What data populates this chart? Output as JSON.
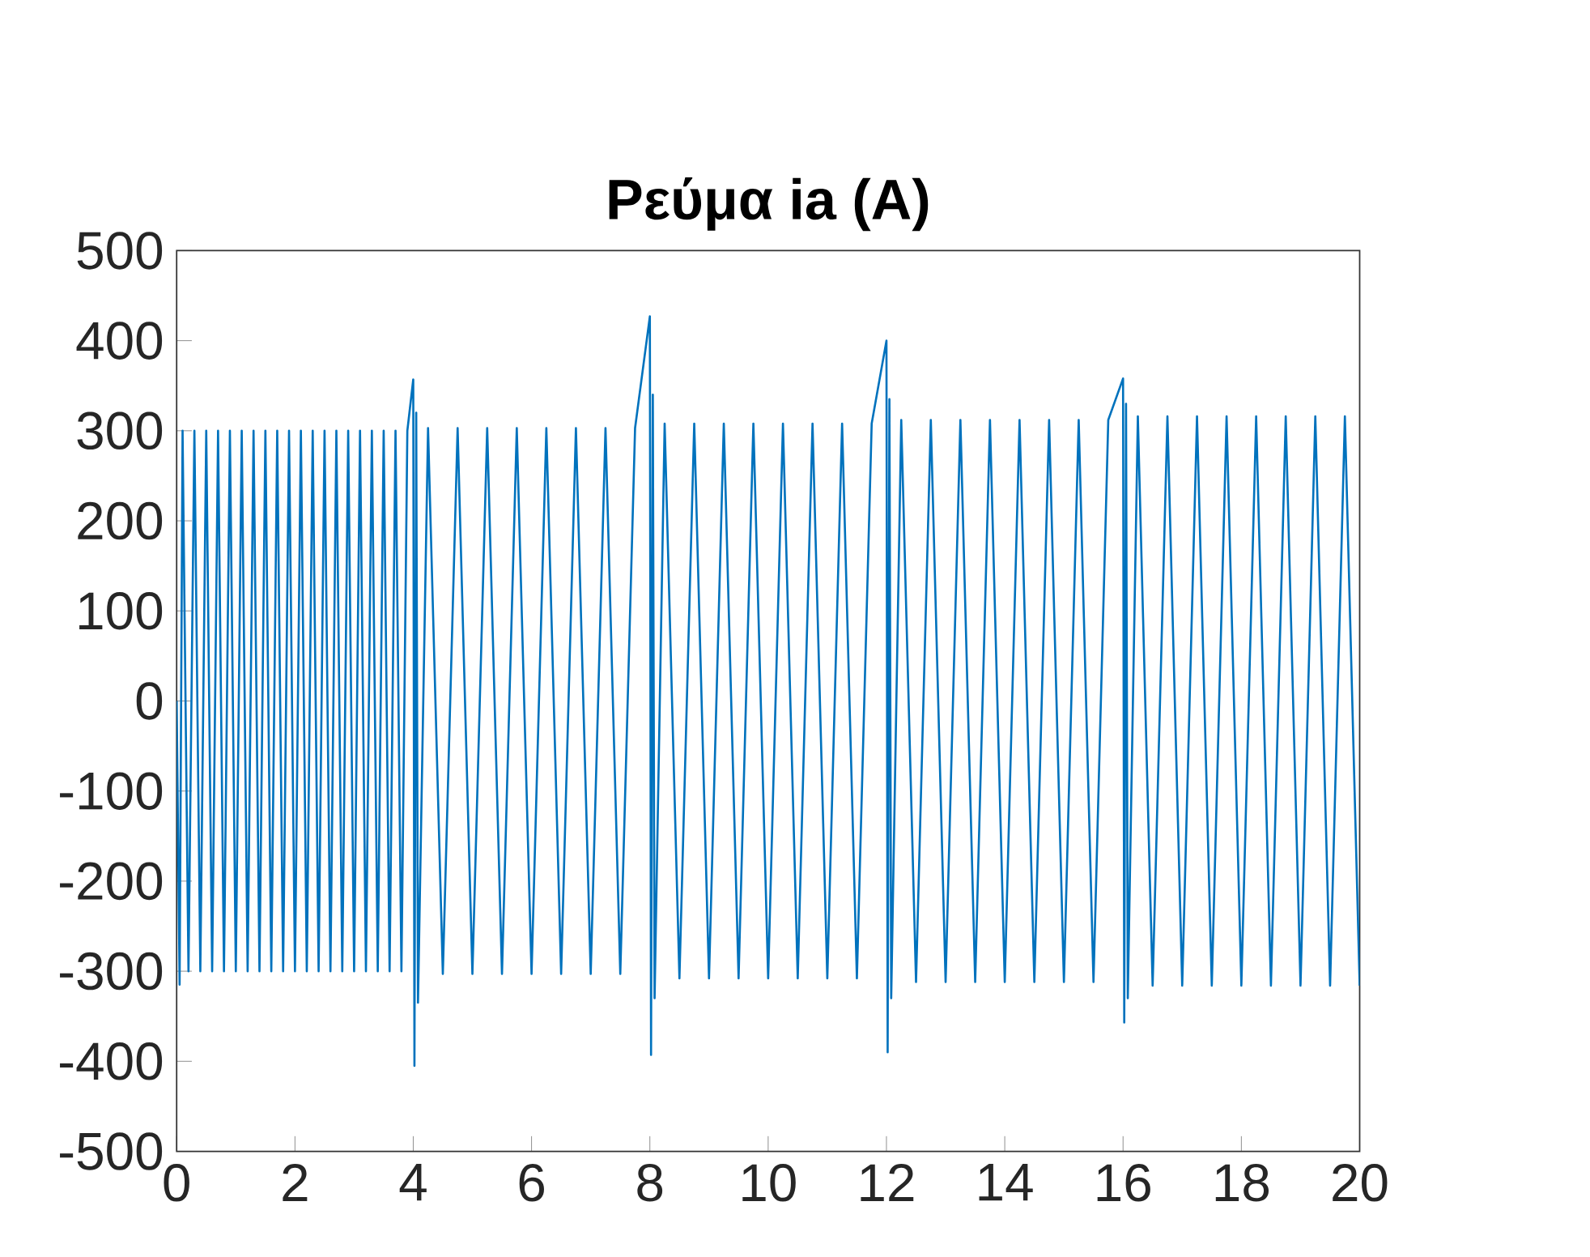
{
  "chart_data": {
    "type": "line",
    "title": "Ρεύμα ia (A)",
    "xlim": [
      0,
      20
    ],
    "xticks": [
      0,
      2,
      4,
      6,
      8,
      10,
      12,
      14,
      16,
      18,
      20
    ],
    "ylim": [
      -500,
      500
    ],
    "yticks": [
      -500,
      -400,
      -300,
      -200,
      -100,
      0,
      100,
      200,
      300,
      400,
      500
    ],
    "grid": false,
    "marker": "none",
    "line_style": "solid",
    "series": [
      {
        "color": "#0072bd",
        "x": [
          0,
          0.05,
          0.1,
          0.2,
          0.3,
          0.4,
          0.5,
          0.6,
          0.7,
          0.8,
          0.9,
          1.0,
          1.1,
          1.2,
          1.3,
          1.4,
          1.5,
          1.6,
          1.7,
          1.8,
          1.9,
          2.0,
          2.1,
          2.2,
          2.3,
          2.4,
          2.5,
          2.6,
          2.7,
          2.8,
          2.9,
          3.0,
          3.1,
          3.2,
          3.3,
          3.4,
          3.5,
          3.6,
          3.7,
          3.8,
          3.9,
          4.0,
          4.02,
          4.05,
          4.08,
          4.25,
          4.5,
          4.75,
          5.0,
          5.25,
          5.5,
          5.75,
          6.0,
          6.25,
          6.5,
          6.75,
          7.0,
          7.25,
          7.5,
          7.75,
          8.0,
          8.02,
          8.05,
          8.08,
          8.25,
          8.5,
          8.75,
          9.0,
          9.25,
          9.5,
          9.75,
          10.0,
          10.25,
          10.5,
          10.75,
          11.0,
          11.25,
          11.5,
          11.75,
          12.0,
          12.02,
          12.05,
          12.08,
          12.25,
          12.5,
          12.75,
          13.0,
          13.25,
          13.5,
          13.75,
          14.0,
          14.25,
          14.5,
          14.75,
          15.0,
          15.25,
          15.5,
          15.75,
          16.0,
          16.02,
          16.05,
          16.08,
          16.25,
          16.5,
          16.75,
          17.0,
          17.25,
          17.5,
          17.75,
          18.0,
          18.25,
          18.5,
          18.75,
          19.0,
          19.25,
          19.5,
          19.75,
          20
        ],
        "values": [
          0,
          -315,
          300,
          -300,
          300,
          -300,
          300,
          -300,
          300,
          -300,
          300,
          -300,
          300,
          -300,
          300,
          -300,
          300,
          -300,
          300,
          -300,
          300,
          -300,
          300,
          -300,
          300,
          -300,
          300,
          -300,
          300,
          -300,
          300,
          -300,
          300,
          -300,
          300,
          -300,
          300,
          -300,
          300,
          -300,
          300,
          357,
          -405,
          320,
          -335,
          303,
          -303,
          303,
          -303,
          303,
          -303,
          303,
          -303,
          303,
          -303,
          303,
          -303,
          303,
          -303,
          303,
          427,
          -393,
          340,
          -330,
          308,
          -308,
          308,
          -308,
          308,
          -308,
          308,
          -308,
          308,
          -308,
          308,
          -308,
          308,
          -308,
          308,
          400,
          -390,
          335,
          -330,
          312,
          -312,
          312,
          -312,
          312,
          -312,
          312,
          -312,
          312,
          -312,
          312,
          -312,
          312,
          -312,
          312,
          358,
          -357,
          330,
          -330,
          316,
          -316,
          316,
          -316,
          316,
          -316,
          316,
          -316,
          316,
          -316,
          316,
          -316,
          316,
          -316,
          316,
          -316
        ]
      }
    ]
  }
}
